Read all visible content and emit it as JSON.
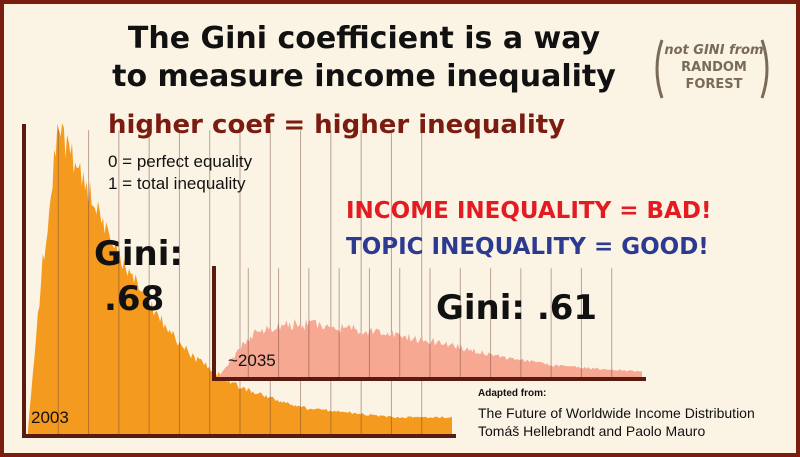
{
  "title_line1": "The Gini coefficient is a way",
  "title_line2": "to measure income inequality",
  "side_note": {
    "word1": "not GINI",
    "word2": "from",
    "line2": "RANDOM",
    "line3": "FOREST"
  },
  "subtitle": "higher coef = higher inequality",
  "legend": [
    "0 = perfect equality",
    "1 = total inequality"
  ],
  "income_statement": "INCOME INEQUALITY = BAD!",
  "topic_statement": "TOPIC INEQUALITY = GOOD!",
  "colors": {
    "border": "#7a1c10",
    "background": "#fbf3e4",
    "dist_2003": "#f49a1f",
    "dist_2035": "#f7a893",
    "bad": "#e31b23",
    "good": "#2c3a8f"
  },
  "chart_data": [
    {
      "type": "area",
      "series": [
        {
          "name": "2003",
          "values": [
            0.02,
            0.55,
            0.97,
            0.9,
            0.8,
            0.7,
            0.6,
            0.52,
            0.44,
            0.38,
            0.32,
            0.27,
            0.23,
            0.2,
            0.17,
            0.15,
            0.13,
            0.115,
            0.1,
            0.09,
            0.085,
            0.08,
            0.075,
            0.07,
            0.065,
            0.06,
            0.06,
            0.06,
            0.06,
            0.06
          ]
        }
      ],
      "annotations": [
        "2003",
        "Gini:",
        ".68"
      ]
    },
    {
      "type": "area",
      "series": [
        {
          "name": "~2035",
          "values": [
            0.02,
            0.18,
            0.36,
            0.44,
            0.47,
            0.48,
            0.48,
            0.47,
            0.46,
            0.45,
            0.43,
            0.41,
            0.39,
            0.37,
            0.35,
            0.33,
            0.3,
            0.27,
            0.24,
            0.21,
            0.18,
            0.16,
            0.14,
            0.12,
            0.11,
            0.1,
            0.09,
            0.08,
            0.075,
            0.07
          ]
        }
      ],
      "annotations": [
        "~2035",
        "Gini: .61"
      ]
    }
  ],
  "source": {
    "label": "Adapted from:",
    "title": "The Future of Worldwide Income Distribution",
    "authors": "Tomáš Hellebrandt and Paolo Mauro"
  }
}
